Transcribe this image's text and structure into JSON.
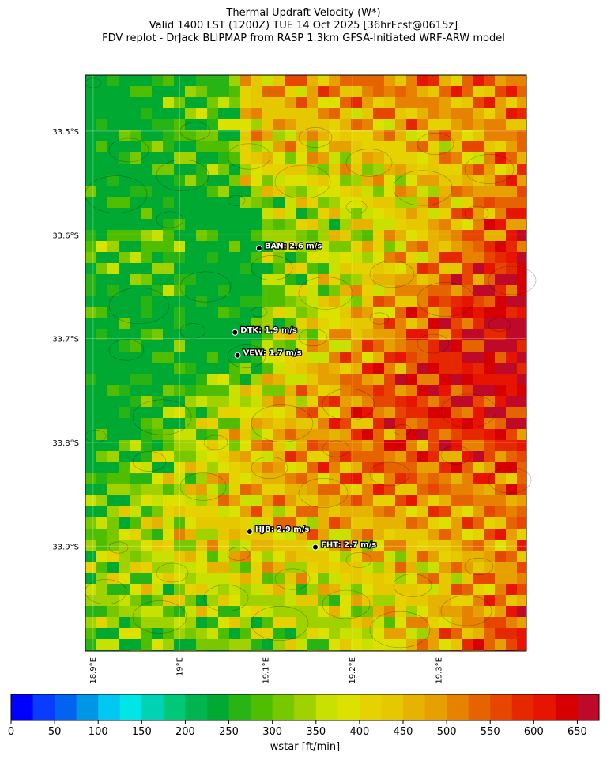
{
  "header": {
    "title_lines": [
      "Thermal Updraft Velocity (W*)",
      "Valid 1400 LST (1200Z) TUE 14 Oct 2025 [36hrFcst@0615z]",
      "FDV replot - DrJack BLIPMAP from RASP 1.3km GFSA-Initiated WRF-ARW model"
    ]
  },
  "map": {
    "xlim": [
      18.891,
      19.401
    ],
    "ylim": [
      -34.001,
      -33.446
    ],
    "xticks": [
      {
        "value": 18.9,
        "label": "18.9°E"
      },
      {
        "value": 19.0,
        "label": "19°E"
      },
      {
        "value": 19.1,
        "label": "19.1°E"
      },
      {
        "value": 19.2,
        "label": "19.2°E"
      },
      {
        "value": 19.3,
        "label": "19.3°E"
      }
    ],
    "yticks": [
      {
        "value": -33.5,
        "label": "33.5°S"
      },
      {
        "value": -33.6,
        "label": "33.6°S"
      },
      {
        "value": -33.7,
        "label": "33.7°S"
      },
      {
        "value": -33.8,
        "label": "33.8°S"
      },
      {
        "value": -33.9,
        "label": "33.9°S"
      }
    ],
    "stations": [
      {
        "label": "BAN: 2.6 m/s",
        "lon": 19.092,
        "lat": -33.613
      },
      {
        "label": "DTK: 1.9 m/s",
        "lon": 19.064,
        "lat": -33.694
      },
      {
        "label": "VEW: 1.7 m/s",
        "lon": 19.067,
        "lat": -33.716
      },
      {
        "label": "HJB: 2.9 m/s",
        "lon": 19.081,
        "lat": -33.886
      },
      {
        "label": "FHT: 2.7 m/s",
        "lon": 19.157,
        "lat": -33.901
      }
    ]
  },
  "colorbar": {
    "label": "wstar [ft/min]",
    "lim": [
      0,
      675
    ],
    "step": 25,
    "ticks": [
      0,
      50,
      100,
      150,
      200,
      250,
      300,
      350,
      400,
      450,
      500,
      550,
      600,
      650
    ],
    "colors": [
      "#0000ff",
      "#0a3cff",
      "#0064f0",
      "#0096e6",
      "#00c8f0",
      "#00e6e6",
      "#00d2b4",
      "#00c878",
      "#00b450",
      "#00aa32",
      "#28b414",
      "#50be00",
      "#78c800",
      "#a0d200",
      "#c8e100",
      "#dce100",
      "#e6d200",
      "#e6c800",
      "#e6b400",
      "#e6a000",
      "#e68200",
      "#e66400",
      "#e64600",
      "#e62800",
      "#e61400",
      "#d70000",
      "#be0a28"
    ]
  }
}
